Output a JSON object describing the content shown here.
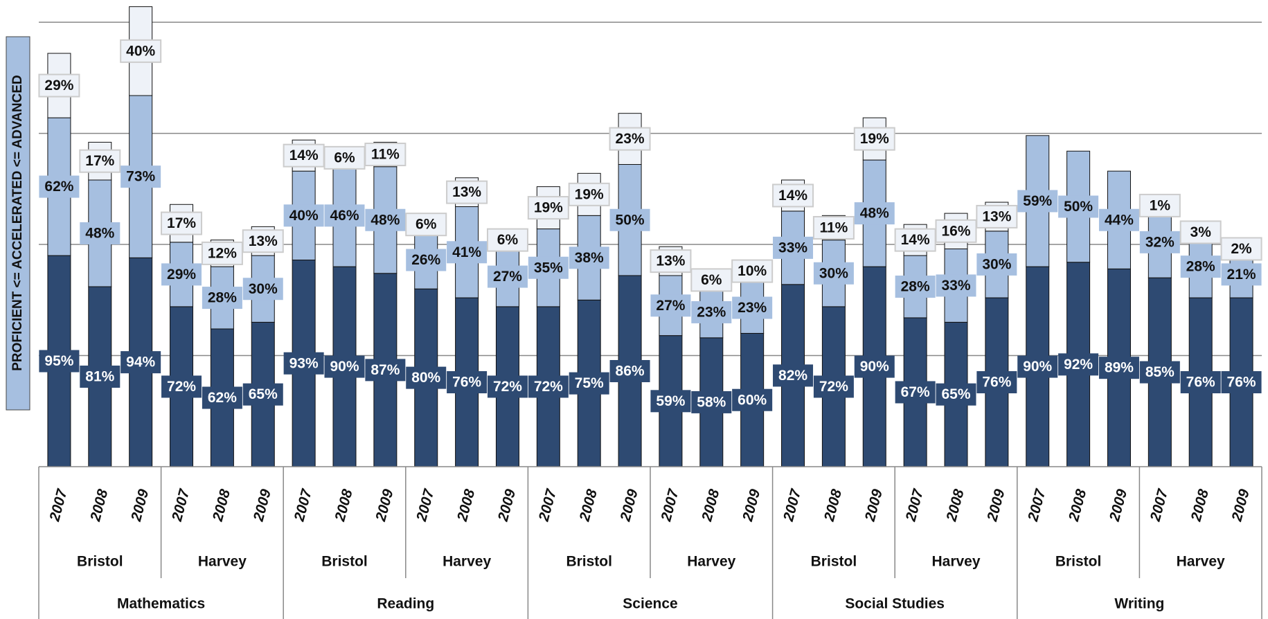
{
  "chart_data": {
    "type": "stacked_bar",
    "y_label": "PROFICIENT <= ACCELERATED <= ADVANCED",
    "categories": [
      "2007",
      "2008",
      "2009",
      "2007",
      "2008",
      "2009",
      "2007",
      "2008",
      "2009",
      "2007",
      "2008",
      "2009",
      "2007",
      "2008",
      "2009",
      "2007",
      "2008",
      "2009",
      "2007",
      "2008",
      "2009",
      "2007",
      "2008",
      "2009",
      "2007",
      "2008",
      "2009",
      "2007",
      "2008",
      "2009"
    ],
    "schools": [
      "Bristol",
      "Harvey",
      "Bristol",
      "Harvey",
      "Bristol",
      "Harvey",
      "Bristol",
      "Harvey",
      "Bristol",
      "Harvey"
    ],
    "subjects": [
      "Mathematics",
      "Reading",
      "Science",
      "Social Studies",
      "Writing"
    ],
    "series": [
      {
        "color": "#2e4a72",
        "label_color": "#ffffff",
        "values": [
          95,
          81,
          94,
          72,
          62,
          65,
          93,
          90,
          87,
          80,
          76,
          72,
          72,
          75,
          86,
          59,
          58,
          60,
          82,
          72,
          90,
          67,
          65,
          76,
          90,
          92,
          89,
          85,
          76,
          76
        ],
        "value_labels": [
          "95%",
          "81%",
          "94%",
          "72%",
          "62%",
          "65%",
          "93%",
          "90%",
          "87%",
          "80%",
          "76%",
          "72%",
          "72%",
          "75%",
          "86%",
          "59%",
          "58%",
          "60%",
          "82%",
          "72%",
          "90%",
          "67%",
          "65%",
          "76%",
          "90%",
          "92%",
          "89%",
          "85%",
          "76%",
          "76%"
        ]
      },
      {
        "color": "#a6bfe0",
        "label_color": "#111111",
        "values": [
          62,
          48,
          73,
          29,
          28,
          30,
          40,
          46,
          48,
          26,
          41,
          27,
          35,
          38,
          50,
          27,
          23,
          23,
          33,
          30,
          48,
          28,
          33,
          30,
          59,
          50,
          44,
          32,
          28,
          21
        ],
        "value_labels": [
          "62%",
          "48%",
          "73%",
          "29%",
          "28%",
          "30%",
          "40%",
          "46%",
          "48%",
          "26%",
          "41%",
          "27%",
          "35%",
          "38%",
          "50%",
          "27%",
          "23%",
          "23%",
          "33%",
          "30%",
          "48%",
          "28%",
          "33%",
          "30%",
          "59%",
          "50%",
          "44%",
          "32%",
          "28%",
          "21%"
        ]
      },
      {
        "color": "#eef2f8",
        "label_color": "#111111",
        "values": [
          29,
          17,
          40,
          17,
          12,
          13,
          14,
          6,
          11,
          6,
          13,
          6,
          19,
          19,
          23,
          13,
          6,
          10,
          14,
          11,
          19,
          14,
          16,
          13,
          null,
          null,
          null,
          1,
          3,
          2
        ],
        "value_labels": [
          "29%",
          "17%",
          "40%",
          "17%",
          "12%",
          "13%",
          "14%",
          "6%",
          "11%",
          "6%",
          "13%",
          "6%",
          "19%",
          "19%",
          "23%",
          "13%",
          "6%",
          "10%",
          "14%",
          "11%",
          "19%",
          "14%",
          "16%",
          "13%",
          null,
          null,
          null,
          "1%",
          "3%",
          "2%"
        ]
      }
    ],
    "ylim": [
      0,
      210
    ],
    "yticks": [
      50,
      100,
      150,
      200
    ],
    "grid": true
  }
}
